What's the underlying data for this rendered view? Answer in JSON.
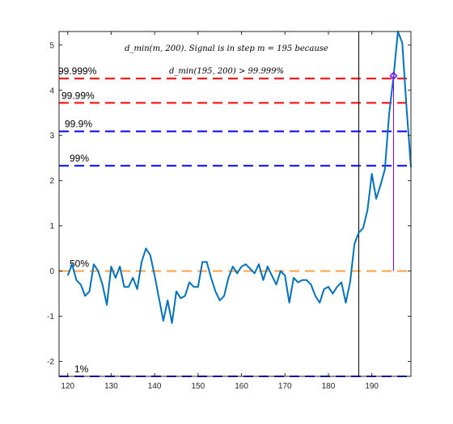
{
  "chart_data": {
    "type": "line",
    "xlim": [
      118,
      199
    ],
    "ylim": [
      -2.33,
      5.3
    ],
    "x_ticks": [
      120,
      130,
      140,
      150,
      160,
      170,
      180,
      190
    ],
    "y_ticks": [
      -2,
      -1,
      0,
      1,
      2,
      3,
      4,
      5
    ],
    "grid": false,
    "annotation_line1": "d_min(m, 200). Signal is in step m = 195 because",
    "annotation_line2": "d_min(195, 200) > 99.999%",
    "thresholds": [
      {
        "label": "99.999%",
        "y": 4.26,
        "color": "#ff0000"
      },
      {
        "label": "99.99%",
        "y": 3.72,
        "color": "#ff0000"
      },
      {
        "label": "99.9%",
        "y": 3.09,
        "color": "#0000ff"
      },
      {
        "label": "99%",
        "y": 2.33,
        "color": "#0000ff"
      },
      {
        "label": "50%",
        "y": 0.0,
        "color": "#ffa040"
      },
      {
        "label": "1%",
        "y": -2.33,
        "color": "#0000ff"
      }
    ],
    "vertical_line_x": 187,
    "marker": {
      "x": 195,
      "y": 4.32,
      "color": "#8000ff"
    },
    "series": [
      {
        "color": "#0072bd",
        "x": [
          120,
          121,
          122,
          123,
          124,
          125,
          126,
          127,
          128,
          129,
          130,
          131,
          132,
          133,
          134,
          135,
          136,
          137,
          138,
          139,
          140,
          141,
          142,
          143,
          144,
          145,
          146,
          147,
          148,
          149,
          150,
          151,
          152,
          153,
          154,
          155,
          156,
          157,
          158,
          159,
          160,
          161,
          162,
          163,
          164,
          165,
          166,
          167,
          168,
          169,
          170,
          171,
          172,
          173,
          174,
          175,
          176,
          177,
          178,
          179,
          180,
          181,
          182,
          183,
          184,
          185,
          186,
          187,
          188,
          189,
          190,
          191,
          192,
          193,
          194,
          195,
          196,
          197,
          198,
          199
        ],
        "values": [
          -0.1,
          0.15,
          -0.2,
          -0.3,
          -0.55,
          -0.45,
          0.15,
          0.0,
          -0.3,
          -0.75,
          0.1,
          -0.15,
          0.1,
          -0.35,
          -0.35,
          -0.15,
          -0.4,
          0.2,
          0.5,
          0.35,
          -0.1,
          -0.6,
          -1.1,
          -0.65,
          -1.15,
          -0.45,
          -0.6,
          -0.55,
          -0.25,
          -0.35,
          -0.35,
          0.2,
          0.2,
          -0.15,
          -0.45,
          -0.65,
          -0.55,
          -0.15,
          0.1,
          -0.05,
          0.1,
          0.15,
          0.05,
          -0.05,
          0.15,
          -0.2,
          0.1,
          -0.1,
          -0.3,
          0.0,
          -0.1,
          -0.7,
          -0.15,
          -0.25,
          -0.2,
          -0.2,
          -0.3,
          -0.55,
          -0.7,
          -0.4,
          -0.35,
          -0.5,
          -0.35,
          -0.25,
          -0.7,
          -0.25,
          0.6,
          0.85,
          0.95,
          1.35,
          2.15,
          1.6,
          1.9,
          2.25,
          3.5,
          4.3,
          5.3,
          5.05,
          3.6,
          2.3
        ]
      }
    ]
  }
}
